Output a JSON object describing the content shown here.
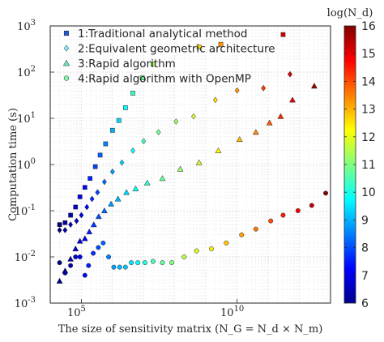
{
  "chart_data": {
    "type": "scatter",
    "xlabel": "The size of sensitivity matrix (N_G = N_d × N_m)",
    "ylabel": "Computation time (s)",
    "x_scale": "log",
    "y_scale": "log",
    "xlim": [
      10000,
      10000000000000
    ],
    "ylim": [
      0.001,
      1000
    ],
    "x_ticks": [
      {
        "v": 100000,
        "label": "10^5"
      },
      {
        "v": 10000000000,
        "label": "10^10"
      }
    ],
    "y_ticks": [
      {
        "v": 0.001,
        "label": "10^-3"
      },
      {
        "v": 0.01,
        "label": "10^-2"
      },
      {
        "v": 0.1,
        "label": "10^-1"
      },
      {
        "v": 1,
        "label": "10^0"
      },
      {
        "v": 10,
        "label": "10^1"
      },
      {
        "v": 100,
        "label": "10^2"
      },
      {
        "v": 1000,
        "label": "10^3"
      }
    ],
    "grid": true,
    "legend_position": "top-left",
    "colorbar": {
      "label": "log(N_d)",
      "min": 6,
      "max": 16,
      "ticks": [
        6,
        7,
        8,
        9,
        10,
        11,
        12,
        13,
        14,
        15,
        16
      ],
      "colormap": "jet"
    },
    "series": [
      {
        "name": "1:Traditional analytical method",
        "marker": "square",
        "points": [
          {
            "x": 20000,
            "y": 0.05,
            "c": 6.0
          },
          {
            "x": 30000,
            "y": 0.055,
            "c": 6.3
          },
          {
            "x": 45000,
            "y": 0.08,
            "c": 6.5
          },
          {
            "x": 65000,
            "y": 0.12,
            "c": 6.8
          },
          {
            "x": 90000,
            "y": 0.2,
            "c": 7.0
          },
          {
            "x": 130000,
            "y": 0.32,
            "c": 7.3
          },
          {
            "x": 190000,
            "y": 0.5,
            "c": 7.6
          },
          {
            "x": 280000,
            "y": 0.9,
            "c": 7.9
          },
          {
            "x": 400000,
            "y": 1.6,
            "c": 8.2
          },
          {
            "x": 600000,
            "y": 2.8,
            "c": 8.5
          },
          {
            "x": 1000000,
            "y": 5.5,
            "c": 9.0
          },
          {
            "x": 1600000,
            "y": 9,
            "c": 9.4
          },
          {
            "x": 2600000,
            "y": 17,
            "c": 9.8
          },
          {
            "x": 4500000,
            "y": 35,
            "c": 10.3
          },
          {
            "x": 9000000,
            "y": 75,
            "c": 10.8
          },
          {
            "x": 20000000,
            "y": 150,
            "c": 11.4
          },
          {
            "x": 600000000,
            "y": 350,
            "c": 12.6
          },
          {
            "x": 3000000000,
            "y": 400,
            "c": 13.3
          },
          {
            "x": 300000000000,
            "y": 650,
            "c": 15.2
          }
        ]
      },
      {
        "name": "2:Equivalent geometric architecture",
        "marker": "diamond",
        "points": [
          {
            "x": 20000,
            "y": 0.038,
            "c": 6.0
          },
          {
            "x": 30000,
            "y": 0.038,
            "c": 6.3
          },
          {
            "x": 45000,
            "y": 0.05,
            "c": 6.5
          },
          {
            "x": 70000,
            "y": 0.06,
            "c": 6.8
          },
          {
            "x": 100000,
            "y": 0.08,
            "c": 7.0
          },
          {
            "x": 150000,
            "y": 0.12,
            "c": 7.3
          },
          {
            "x": 220000,
            "y": 0.18,
            "c": 7.6
          },
          {
            "x": 330000,
            "y": 0.25,
            "c": 7.9
          },
          {
            "x": 550000,
            "y": 0.42,
            "c": 8.3
          },
          {
            "x": 1000000,
            "y": 0.7,
            "c": 8.8
          },
          {
            "x": 2000000,
            "y": 1.1,
            "c": 9.3
          },
          {
            "x": 4500000,
            "y": 2,
            "c": 9.8
          },
          {
            "x": 10000000,
            "y": 3.2,
            "c": 10.3
          },
          {
            "x": 30000000,
            "y": 5,
            "c": 10.8
          },
          {
            "x": 110000000,
            "y": 8.5,
            "c": 11.3
          },
          {
            "x": 400000000,
            "y": 11,
            "c": 11.8
          },
          {
            "x": 2000000000,
            "y": 25,
            "c": 12.6
          },
          {
            "x": 10000000000,
            "y": 40,
            "c": 13.3
          },
          {
            "x": 70000000000,
            "y": 45,
            "c": 14.2
          },
          {
            "x": 500000000000,
            "y": 90,
            "c": 15.2
          }
        ]
      },
      {
        "name": "3:Rapid algorithm",
        "marker": "triangle",
        "points": [
          {
            "x": 20000,
            "y": 0.003,
            "c": 6.0
          },
          {
            "x": 30000,
            "y": 0.005,
            "c": 6.3
          },
          {
            "x": 45000,
            "y": 0.009,
            "c": 6.5
          },
          {
            "x": 65000,
            "y": 0.015,
            "c": 6.8
          },
          {
            "x": 90000,
            "y": 0.022,
            "c": 7.0
          },
          {
            "x": 130000,
            "y": 0.025,
            "c": 7.3
          },
          {
            "x": 180000,
            "y": 0.035,
            "c": 7.5
          },
          {
            "x": 250000,
            "y": 0.05,
            "c": 7.8
          },
          {
            "x": 360000,
            "y": 0.075,
            "c": 8.0
          },
          {
            "x": 550000,
            "y": 0.1,
            "c": 8.3
          },
          {
            "x": 900000,
            "y": 0.14,
            "c": 8.7
          },
          {
            "x": 1500000,
            "y": 0.18,
            "c": 9.0
          },
          {
            "x": 2800000,
            "y": 0.25,
            "c": 9.4
          },
          {
            "x": 5500000,
            "y": 0.3,
            "c": 9.8
          },
          {
            "x": 13000000,
            "y": 0.4,
            "c": 10.2
          },
          {
            "x": 40000000,
            "y": 0.5,
            "c": 10.7
          },
          {
            "x": 150000000,
            "y": 0.8,
            "c": 11.2
          },
          {
            "x": 600000000,
            "y": 1.1,
            "c": 11.8
          },
          {
            "x": 2500000000,
            "y": 2.0,
            "c": 12.3
          },
          {
            "x": 12000000000,
            "y": 3.5,
            "c": 12.9
          },
          {
            "x": 40000000000,
            "y": 5,
            "c": 13.4
          },
          {
            "x": 110000000000,
            "y": 8,
            "c": 13.9
          },
          {
            "x": 250000000000,
            "y": 11,
            "c": 14.4
          },
          {
            "x": 600000000000,
            "y": 25,
            "c": 15.0
          },
          {
            "x": 3000000000000,
            "y": 50,
            "c": 15.7
          }
        ]
      },
      {
        "name": "4:Rapid algorithm with OpenMP",
        "marker": "circle",
        "points": [
          {
            "x": 20000,
            "y": 0.0075,
            "c": 6.0
          },
          {
            "x": 30000,
            "y": 0.0045,
            "c": 6.3
          },
          {
            "x": 45000,
            "y": 0.0065,
            "c": 6.5
          },
          {
            "x": 65000,
            "y": 0.01,
            "c": 6.8
          },
          {
            "x": 90000,
            "y": 0.01,
            "c": 7.0
          },
          {
            "x": 130000,
            "y": 0.004,
            "c": 7.3
          },
          {
            "x": 170000,
            "y": 0.0065,
            "c": 7.5
          },
          {
            "x": 240000,
            "y": 0.012,
            "c": 7.7
          },
          {
            "x": 350000,
            "y": 0.016,
            "c": 8.0
          },
          {
            "x": 500000,
            "y": 0.02,
            "c": 8.2
          },
          {
            "x": 750000,
            "y": 0.01,
            "c": 8.5
          },
          {
            "x": 1100000,
            "y": 0.006,
            "c": 8.8
          },
          {
            "x": 1700000,
            "y": 0.006,
            "c": 9.0
          },
          {
            "x": 2600000,
            "y": 0.006,
            "c": 9.2
          },
          {
            "x": 4000000,
            "y": 0.0075,
            "c": 9.5
          },
          {
            "x": 6500000,
            "y": 0.0075,
            "c": 9.8
          },
          {
            "x": 11000000,
            "y": 0.0075,
            "c": 10.1
          },
          {
            "x": 20000000,
            "y": 0.008,
            "c": 10.4
          },
          {
            "x": 40000000,
            "y": 0.0075,
            "c": 10.7
          },
          {
            "x": 80000000,
            "y": 0.0075,
            "c": 11.0
          },
          {
            "x": 200000000,
            "y": 0.01,
            "c": 11.5
          },
          {
            "x": 500000000,
            "y": 0.0135,
            "c": 11.9
          },
          {
            "x": 1500000000,
            "y": 0.015,
            "c": 12.4
          },
          {
            "x": 4500000000,
            "y": 0.02,
            "c": 12.8
          },
          {
            "x": 14000000000,
            "y": 0.03,
            "c": 13.2
          },
          {
            "x": 40000000000,
            "y": 0.04,
            "c": 13.6
          },
          {
            "x": 120000000000,
            "y": 0.06,
            "c": 14.0
          },
          {
            "x": 300000000000,
            "y": 0.08,
            "c": 14.5
          },
          {
            "x": 900000000000,
            "y": 0.1,
            "c": 14.9
          },
          {
            "x": 2500000000000,
            "y": 0.13,
            "c": 15.4
          },
          {
            "x": 7000000000000,
            "y": 0.24,
            "c": 15.9
          }
        ]
      }
    ]
  }
}
